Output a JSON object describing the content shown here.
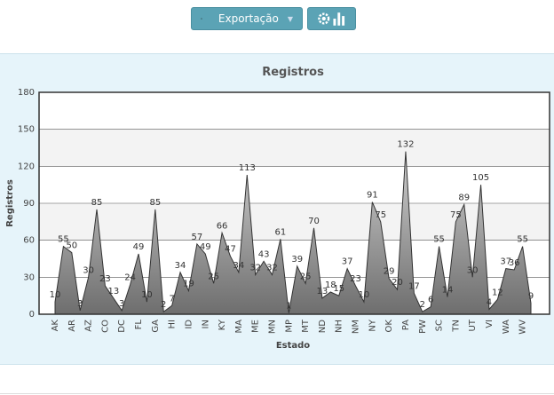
{
  "toolbar": {
    "export_button": "Exportação"
  },
  "chart_data": {
    "type": "area",
    "title": "Registros",
    "y_label": "Registros",
    "x_label": "Estado",
    "categories": [
      "AK",
      null,
      "AR",
      null,
      "AZ",
      null,
      "CO",
      null,
      "DC",
      null,
      "FL",
      null,
      "GA",
      null,
      "HI",
      null,
      "ID",
      null,
      "IN",
      null,
      "KY",
      null,
      "MA",
      null,
      "ME",
      null,
      "MN",
      null,
      "MP",
      null,
      "MT",
      null,
      "ND",
      null,
      "NH",
      null,
      "NM",
      null,
      "NY",
      null,
      "OK",
      null,
      "PA",
      null,
      "PW",
      null,
      "SC",
      null,
      "TN",
      null,
      "UT",
      null,
      "VI",
      null,
      "WA",
      null,
      "WV",
      null
    ],
    "series": [
      {
        "name": "Registros",
        "color": "#8c8c8c",
        "values": [
          10,
          55,
          50,
          3,
          30,
          85,
          23,
          13,
          3,
          24,
          49,
          10,
          85,
          2,
          7,
          34,
          19,
          57,
          49,
          25,
          66,
          47,
          34,
          113,
          32,
          43,
          32,
          61,
          1,
          39,
          25,
          70,
          13,
          18,
          15,
          37,
          23,
          10,
          91,
          75,
          29,
          20,
          132,
          17,
          2,
          6,
          55,
          14,
          75,
          89,
          30,
          105,
          4,
          12,
          37,
          36,
          55,
          9
        ]
      }
    ],
    "ylim": [
      0,
      180
    ],
    "yticks": [
      0,
      30,
      60,
      90,
      120,
      150,
      180
    ],
    "grid": true
  }
}
